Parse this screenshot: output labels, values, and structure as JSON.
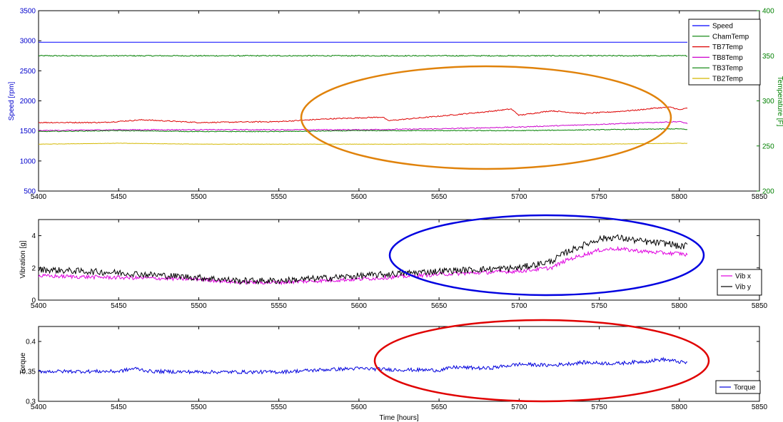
{
  "chart_data": [
    {
      "type": "line",
      "x_range": [
        5400,
        5850
      ],
      "x_ticks": [
        "5400",
        "5450",
        "5500",
        "5550",
        "5600",
        "5650",
        "5700",
        "5750",
        "5800",
        "5850"
      ],
      "ylabel": "Speed [rpm]",
      "ylim": [
        500,
        3500
      ],
      "y_ticks": [
        "500",
        "1000",
        "1500",
        "2000",
        "2500",
        "3000",
        "3500"
      ],
      "ylabel_right": "Temperature [F]",
      "ylim_right": [
        200,
        400
      ],
      "y_ticks_right": [
        "200",
        "250",
        "300",
        "350",
        "400"
      ],
      "legend_placement": "top-right",
      "annotation": "orange ellipse around TB7Temp / TB8Temp rise, x 5565–5800",
      "series": [
        {
          "name": "Speed",
          "color": "#0000ff",
          "axis": "left",
          "x": [
            5400,
            5805
          ],
          "y": [
            2975,
            2975
          ]
        },
        {
          "name": "ChamTemp",
          "color": "#007f00",
          "axis": "right",
          "x": [
            5400,
            5500,
            5600,
            5700,
            5805
          ],
          "y": [
            350,
            350,
            350,
            350,
            350
          ],
          "noise": 0.6
        },
        {
          "name": "TB7Temp",
          "color": "#dd0000",
          "axis": "right",
          "x": [
            5400,
            5440,
            5465,
            5500,
            5550,
            5580,
            5615,
            5618,
            5650,
            5680,
            5695,
            5700,
            5720,
            5740,
            5760,
            5775,
            5785,
            5795,
            5800,
            5805
          ],
          "y": [
            276,
            276,
            279,
            276,
            277,
            280,
            282,
            278,
            283,
            288,
            291,
            284,
            289,
            286,
            288,
            290,
            292,
            293,
            290,
            292
          ],
          "noise": 0.6
        },
        {
          "name": "TB8Temp",
          "color": "#cc00cc",
          "axis": "right",
          "x": [
            5400,
            5450,
            5500,
            5550,
            5600,
            5650,
            5700,
            5750,
            5800,
            5805
          ],
          "y": [
            267,
            268,
            268,
            268,
            268,
            269,
            271,
            274,
            277,
            275
          ],
          "noise": 0.5
        },
        {
          "name": "TB3Temp",
          "color": "#007f00",
          "axis": "right",
          "x": [
            5400,
            5450,
            5500,
            5550,
            5600,
            5650,
            5700,
            5750,
            5800,
            5805
          ],
          "y": [
            266,
            267,
            266,
            266,
            267,
            267,
            267,
            268,
            269,
            268
          ],
          "noise": 0.4
        },
        {
          "name": "TB2Temp",
          "color": "#d4b800",
          "axis": "right",
          "x": [
            5400,
            5450,
            5500,
            5550,
            5600,
            5650,
            5700,
            5750,
            5800,
            5805
          ],
          "y": [
            252,
            253,
            252,
            252,
            252,
            252,
            252,
            252,
            253,
            253
          ],
          "noise": 0.2
        }
      ]
    },
    {
      "type": "line",
      "x_range": [
        5400,
        5850
      ],
      "x_ticks": [
        "5400",
        "5450",
        "5500",
        "5550",
        "5600",
        "5650",
        "5700",
        "5750",
        "5800",
        "5850"
      ],
      "ylabel": "Vibration [g]",
      "ylim": [
        0,
        5
      ],
      "y_ticks": [
        "0",
        "2",
        "4"
      ],
      "legend_placement": "bottom-right",
      "annotation": "blue ellipse around vibration increase, x 5640–5855",
      "series": [
        {
          "name": "Vib x",
          "color": "#e000e0",
          "x": [
            5400,
            5450,
            5500,
            5525,
            5550,
            5600,
            5650,
            5700,
            5720,
            5730,
            5740,
            5750,
            5760,
            5780,
            5795,
            5800,
            5805
          ],
          "y": [
            1.5,
            1.4,
            1.3,
            1.1,
            1.1,
            1.3,
            1.6,
            1.8,
            2.0,
            2.5,
            2.8,
            3.1,
            3.2,
            3.0,
            2.9,
            2.9,
            2.8
          ],
          "noise": 0.12
        },
        {
          "name": "Vib y",
          "color": "#000000",
          "x": [
            5400,
            5450,
            5500,
            5525,
            5550,
            5600,
            5650,
            5700,
            5720,
            5730,
            5740,
            5750,
            5760,
            5780,
            5795,
            5800,
            5805
          ],
          "y": [
            1.9,
            1.7,
            1.4,
            1.2,
            1.2,
            1.5,
            1.8,
            2.0,
            2.4,
            3.0,
            3.4,
            3.8,
            3.9,
            3.6,
            3.5,
            3.3,
            3.4
          ],
          "noise": 0.2
        }
      ]
    },
    {
      "type": "line",
      "x_range": [
        5400,
        5850
      ],
      "x_ticks": [
        "5400",
        "5450",
        "5500",
        "5550",
        "5600",
        "5650",
        "5700",
        "5750",
        "5800",
        "5850"
      ],
      "xlabel": "Time [hours]",
      "ylabel": "Torque",
      "ylim": [
        0.3,
        0.425
      ],
      "y_ticks": [
        "0.3",
        "0.35",
        "0.4"
      ],
      "legend_placement": "bottom-right",
      "annotation": "red ellipse around torque variability, x 5610–5855",
      "series": [
        {
          "name": "Torque",
          "color": "#0000dd",
          "x": [
            5400,
            5450,
            5460,
            5470,
            5500,
            5550,
            5580,
            5600,
            5620,
            5650,
            5660,
            5680,
            5700,
            5720,
            5740,
            5760,
            5780,
            5790,
            5800,
            5805
          ],
          "y": [
            0.35,
            0.35,
            0.355,
            0.35,
            0.349,
            0.349,
            0.353,
            0.355,
            0.353,
            0.352,
            0.357,
            0.355,
            0.362,
            0.36,
            0.365,
            0.363,
            0.367,
            0.37,
            0.366,
            0.364
          ],
          "noise": 0.003
        }
      ]
    }
  ]
}
